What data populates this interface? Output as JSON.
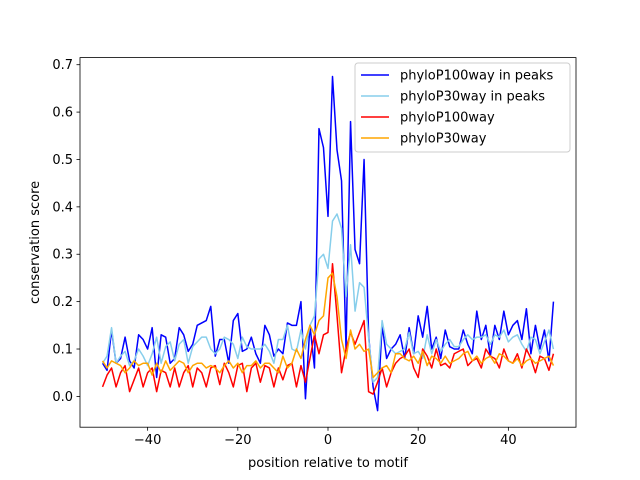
{
  "chart_data": {
    "type": "line",
    "title": "",
    "xlabel": "position relative to motif",
    "ylabel": "conservation score",
    "xlim": [
      -55,
      55
    ],
    "ylim": [
      -0.065,
      0.715
    ],
    "xticks": [
      -40,
      -20,
      0,
      20,
      40
    ],
    "yticks": [
      0.0,
      0.1,
      0.2,
      0.3,
      0.4,
      0.5,
      0.6,
      0.7
    ],
    "xtick_labels": [
      "−40",
      "−20",
      "0",
      "20",
      "40"
    ],
    "ytick_labels": [
      "0.0",
      "0.1",
      "0.2",
      "0.3",
      "0.4",
      "0.5",
      "0.6",
      "0.7"
    ],
    "grid": false,
    "legend_position": "top-right",
    "x": [
      -50,
      -49,
      -48,
      -47,
      -46,
      -45,
      -44,
      -43,
      -42,
      -41,
      -40,
      -39,
      -38,
      -37,
      -36,
      -35,
      -34,
      -33,
      -32,
      -31,
      -30,
      -29,
      -28,
      -27,
      -26,
      -25,
      -24,
      -23,
      -22,
      -21,
      -20,
      -19,
      -18,
      -17,
      -16,
      -15,
      -14,
      -13,
      -12,
      -11,
      -10,
      -9,
      -8,
      -7,
      -6,
      -5,
      -4,
      -3,
      -2,
      -1,
      0,
      1,
      2,
      3,
      4,
      5,
      6,
      7,
      8,
      9,
      10,
      11,
      12,
      13,
      14,
      15,
      16,
      17,
      18,
      19,
      20,
      21,
      22,
      23,
      24,
      25,
      26,
      27,
      28,
      29,
      30,
      31,
      32,
      33,
      34,
      35,
      36,
      37,
      38,
      39,
      40,
      41,
      42,
      43,
      44,
      45,
      46,
      47,
      48,
      49,
      50
    ],
    "series": [
      {
        "name": "phyloP100way in peaks",
        "color": "#0000ff",
        "values": [
          0.07,
          0.055,
          0.14,
          0.07,
          0.08,
          0.125,
          0.075,
          0.06,
          0.13,
          0.12,
          0.1,
          0.145,
          0.04,
          0.13,
          0.125,
          0.07,
          0.08,
          0.145,
          0.13,
          0.095,
          0.11,
          0.15,
          0.155,
          0.16,
          0.19,
          0.085,
          0.12,
          0.12,
          0.07,
          0.16,
          0.175,
          0.095,
          0.1,
          0.125,
          0.09,
          0.07,
          0.15,
          0.13,
          0.085,
          0.1,
          0.09,
          0.155,
          0.15,
          0.15,
          0.2,
          -0.005,
          0.15,
          0.06,
          0.565,
          0.525,
          0.38,
          0.675,
          0.52,
          0.455,
          0.1,
          0.58,
          0.31,
          0.28,
          0.5,
          0.13,
          0.02,
          -0.03,
          0.15,
          0.08,
          0.1,
          0.11,
          0.13,
          0.08,
          0.145,
          0.09,
          0.17,
          0.125,
          0.19,
          0.1,
          0.125,
          0.08,
          0.14,
          0.105,
          0.1,
          0.1,
          0.14,
          0.11,
          0.09,
          0.18,
          0.12,
          0.15,
          0.085,
          0.15,
          0.12,
          0.18,
          0.13,
          0.15,
          0.16,
          0.12,
          0.185,
          0.09,
          0.15,
          0.1,
          0.14,
          0.075,
          0.2
        ]
      },
      {
        "name": "phyloP30way in peaks",
        "color": "#87ceeb",
        "values": [
          0.07,
          0.085,
          0.145,
          0.07,
          0.085,
          0.095,
          0.065,
          0.075,
          0.1,
          0.085,
          0.065,
          0.09,
          0.125,
          0.07,
          0.105,
          0.115,
          0.075,
          0.11,
          0.12,
          0.07,
          0.105,
          0.115,
          0.125,
          0.125,
          0.1,
          0.09,
          0.1,
          0.125,
          0.12,
          0.11,
          0.08,
          0.125,
          0.105,
          0.1,
          0.1,
          0.1,
          0.11,
          0.095,
          0.07,
          0.12,
          0.12,
          0.15,
          0.1,
          0.095,
          0.14,
          0.1,
          0.15,
          0.17,
          0.29,
          0.3,
          0.27,
          0.37,
          0.385,
          0.355,
          0.21,
          0.32,
          0.18,
          0.24,
          0.23,
          0.125,
          0.03,
          0.04,
          0.16,
          0.11,
          0.1,
          0.09,
          0.095,
          0.1,
          0.135,
          0.09,
          0.095,
          0.08,
          0.13,
          0.09,
          0.12,
          0.095,
          0.11,
          0.12,
          0.105,
          0.105,
          0.12,
          0.13,
          0.12,
          0.125,
          0.125,
          0.13,
          0.11,
          0.13,
          0.125,
          0.14,
          0.115,
          0.125,
          0.13,
          0.11,
          0.095,
          0.125,
          0.12,
          0.09,
          0.115,
          0.14,
          0.1
        ]
      },
      {
        "name": "phyloP100way",
        "color": "#ff0000",
        "values": [
          0.02,
          0.045,
          0.06,
          0.02,
          0.05,
          0.065,
          0.01,
          0.035,
          0.06,
          0.02,
          0.05,
          0.06,
          0.01,
          0.055,
          0.05,
          0.02,
          0.06,
          0.02,
          0.05,
          0.065,
          0.02,
          0.06,
          0.05,
          0.02,
          0.06,
          0.065,
          0.025,
          0.07,
          0.05,
          0.02,
          0.065,
          0.07,
          0.01,
          0.06,
          0.07,
          0.03,
          0.065,
          0.06,
          0.02,
          0.06,
          0.035,
          0.065,
          0.07,
          0.02,
          0.065,
          0.03,
          0.08,
          0.13,
          0.09,
          0.13,
          0.135,
          0.28,
          0.17,
          0.05,
          0.1,
          0.135,
          0.11,
          0.135,
          0.16,
          0.01,
          0.005,
          0.03,
          0.06,
          0.02,
          0.05,
          0.07,
          0.08,
          0.085,
          0.1,
          0.06,
          0.04,
          0.1,
          0.085,
          0.06,
          0.1,
          0.065,
          0.07,
          0.06,
          0.09,
          0.095,
          0.1,
          0.065,
          0.075,
          0.08,
          0.06,
          0.1,
          0.085,
          0.08,
          0.06,
          0.1,
          0.075,
          0.07,
          0.09,
          0.06,
          0.1,
          0.08,
          0.05,
          0.085,
          0.08,
          0.055,
          0.09
        ]
      },
      {
        "name": "phyloP30way",
        "color": "#ffa500",
        "values": [
          0.075,
          0.06,
          0.075,
          0.07,
          0.065,
          0.05,
          0.06,
          0.075,
          0.065,
          0.07,
          0.07,
          0.045,
          0.07,
          0.05,
          0.075,
          0.055,
          0.065,
          0.075,
          0.07,
          0.05,
          0.065,
          0.07,
          0.07,
          0.06,
          0.065,
          0.06,
          0.05,
          0.065,
          0.075,
          0.06,
          0.07,
          0.05,
          0.065,
          0.065,
          0.075,
          0.06,
          0.07,
          0.07,
          0.06,
          0.05,
          0.085,
          0.06,
          0.07,
          0.1,
          0.08,
          0.12,
          0.15,
          0.13,
          0.16,
          0.17,
          0.25,
          0.26,
          0.21,
          0.12,
          0.08,
          0.14,
          0.1,
          0.11,
          0.095,
          0.1,
          0.04,
          0.05,
          0.06,
          0.065,
          0.05,
          0.09,
          0.09,
          0.08,
          0.075,
          0.085,
          0.07,
          0.095,
          0.065,
          0.085,
          0.08,
          0.07,
          0.085,
          0.07,
          0.075,
          0.08,
          0.09,
          0.095,
          0.075,
          0.085,
          0.07,
          0.08,
          0.085,
          0.07,
          0.09,
          0.085,
          0.075,
          0.07,
          0.08,
          0.065,
          0.075,
          0.08,
          0.07,
          0.075,
          0.08,
          0.085,
          0.065
        ]
      }
    ]
  }
}
